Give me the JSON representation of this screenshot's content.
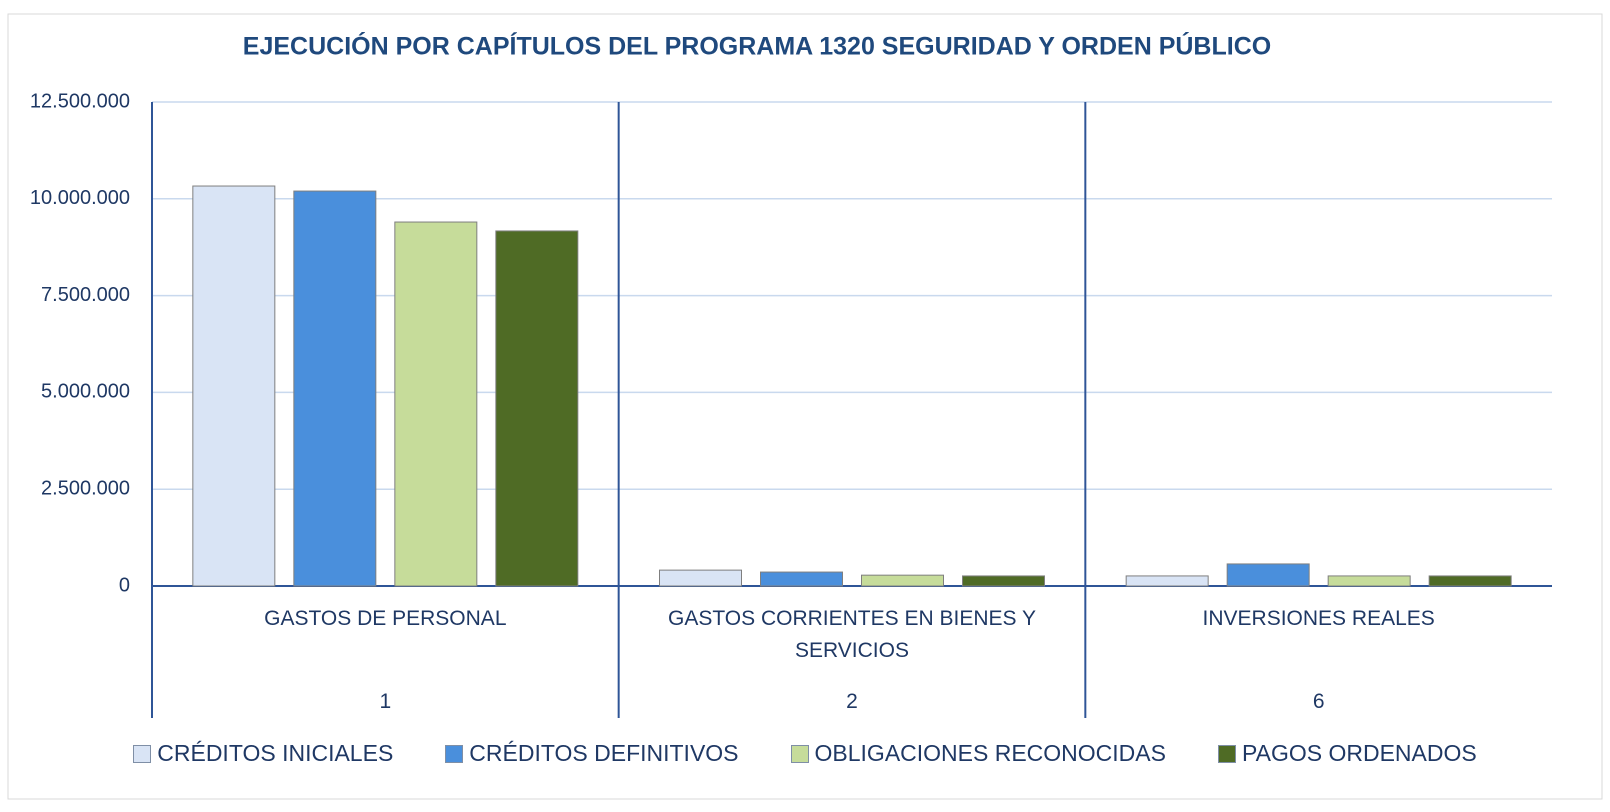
{
  "chart_data": {
    "type": "bar",
    "title": "EJECUCIÓN POR CAPÍTULOS DEL PROGRAMA 1320 SEGURIDAD Y ORDEN PÚBLICO",
    "categories": [
      "GASTOS DE PERSONAL",
      "GASTOS CORRIENTES EN BIENES Y SERVICIOS",
      "INVERSIONES REALES"
    ],
    "category_codes": [
      "1",
      "2",
      "6"
    ],
    "series": [
      {
        "name": "CRÉDITOS INICIALES",
        "color": "#d9e4f5",
        "values": [
          10330000,
          410000,
          260000
        ]
      },
      {
        "name": "CRÉDITOS DEFINITIVOS",
        "color": "#4a8fdc",
        "values": [
          10200000,
          360000,
          570000
        ]
      },
      {
        "name": "OBLIGACIONES RECONOCIDAS",
        "color": "#c6dc9a",
        "values": [
          9400000,
          280000,
          260000
        ]
      },
      {
        "name": "PAGOS ORDENADOS",
        "color": "#4f6b25",
        "values": [
          9170000,
          260000,
          260000
        ]
      }
    ],
    "ylim": [
      0,
      12500000
    ],
    "yticks": [
      0,
      {
        "value": 2500000,
        "label": "2.500.000"
      },
      {
        "value": 5000000,
        "label": "5.000.000"
      },
      {
        "value": 7500000,
        "label": "7.500.000"
      },
      {
        "value": 10000000,
        "label": "10.000.000"
      },
      {
        "value": 12500000,
        "label": "12.500.000"
      }
    ],
    "grid": true,
    "legend": "bottom"
  }
}
